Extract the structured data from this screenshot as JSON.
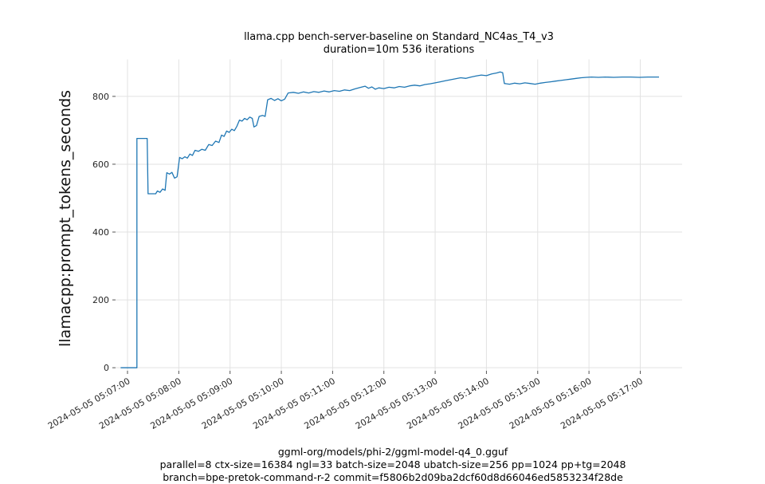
{
  "title": {
    "line1": "llama.cpp bench-server-baseline on Standard_NC4as_T4_v3",
    "line2": "duration=10m 536 iterations"
  },
  "footer": {
    "line1": "ggml-org/models/phi-2/ggml-model-q4_0.gguf",
    "line2": "parallel=8 ctx-size=16384 ngl=33 batch-size=2048 ubatch-size=256 pp=1024 pp+tg=2048",
    "line3": "branch=bpe-pretok-command-r-2 commit=f5806b2d09ba2dcf60d8d66046ed5853234f28de"
  },
  "chart_data": {
    "type": "line",
    "title": "llama.cpp bench-server-baseline on Standard_NC4as_T4_v3 duration=10m 536 iterations",
    "xlabel": "",
    "ylabel": "llamacpp:prompt_tokens_seconds",
    "grid": true,
    "grid_color": "#e2e2e2",
    "tick_color": "#555555",
    "label_color": "#262626",
    "line_color": "#1f77b4",
    "ylim": [
      -9,
      909
    ],
    "xlim_seconds": [
      -14,
      649
    ],
    "y_ticks": [
      0,
      200,
      400,
      600,
      800
    ],
    "x_ticks": [
      {
        "t": 0,
        "label": "2024-05-05 05:07:00"
      },
      {
        "t": 60,
        "label": "2024-05-05 05:08:00"
      },
      {
        "t": 120,
        "label": "2024-05-05 05:09:00"
      },
      {
        "t": 180,
        "label": "2024-05-05 05:10:00"
      },
      {
        "t": 240,
        "label": "2024-05-05 05:11:00"
      },
      {
        "t": 300,
        "label": "2024-05-05 05:12:00"
      },
      {
        "t": 360,
        "label": "2024-05-05 05:13:00"
      },
      {
        "t": 420,
        "label": "2024-05-05 05:14:00"
      },
      {
        "t": 480,
        "label": "2024-05-05 05:15:00"
      },
      {
        "t": 540,
        "label": "2024-05-05 05:16:00"
      },
      {
        "t": 600,
        "label": "2024-05-05 05:17:00"
      }
    ],
    "series": [
      {
        "name": "llamacpp:prompt_tokens_seconds",
        "points": [
          [
            -8,
            0
          ],
          [
            11,
            0
          ],
          [
            11,
            676
          ],
          [
            23,
            676
          ],
          [
            24,
            513
          ],
          [
            33,
            513
          ],
          [
            35,
            521
          ],
          [
            38,
            517
          ],
          [
            41,
            527
          ],
          [
            44,
            523
          ],
          [
            46,
            575
          ],
          [
            49,
            571
          ],
          [
            52,
            576
          ],
          [
            55,
            559
          ],
          [
            58,
            563
          ],
          [
            61,
            620
          ],
          [
            64,
            616
          ],
          [
            67,
            622
          ],
          [
            70,
            618
          ],
          [
            73,
            630
          ],
          [
            76,
            626
          ],
          [
            79,
            641
          ],
          [
            83,
            638
          ],
          [
            87,
            644
          ],
          [
            91,
            641
          ],
          [
            95,
            658
          ],
          [
            99,
            655
          ],
          [
            103,
            668
          ],
          [
            107,
            664
          ],
          [
            110,
            686
          ],
          [
            113,
            682
          ],
          [
            116,
            698
          ],
          [
            119,
            694
          ],
          [
            122,
            703
          ],
          [
            125,
            699
          ],
          [
            128,
            712
          ],
          [
            131,
            730
          ],
          [
            134,
            727
          ],
          [
            137,
            735
          ],
          [
            140,
            731
          ],
          [
            143,
            739
          ],
          [
            146,
            735
          ],
          [
            148,
            710
          ],
          [
            151,
            714
          ],
          [
            154,
            741
          ],
          [
            158,
            744
          ],
          [
            161,
            741
          ],
          [
            164,
            790
          ],
          [
            168,
            794
          ],
          [
            172,
            788
          ],
          [
            176,
            793
          ],
          [
            180,
            787
          ],
          [
            184,
            792
          ],
          [
            188,
            810
          ],
          [
            194,
            812
          ],
          [
            200,
            809
          ],
          [
            206,
            813
          ],
          [
            212,
            810
          ],
          [
            218,
            814
          ],
          [
            224,
            812
          ],
          [
            230,
            816
          ],
          [
            236,
            813
          ],
          [
            242,
            817
          ],
          [
            248,
            815
          ],
          [
            254,
            819
          ],
          [
            260,
            817
          ],
          [
            266,
            822
          ],
          [
            272,
            826
          ],
          [
            278,
            830
          ],
          [
            282,
            824
          ],
          [
            286,
            828
          ],
          [
            290,
            821
          ],
          [
            294,
            825
          ],
          [
            300,
            823
          ],
          [
            306,
            827
          ],
          [
            312,
            825
          ],
          [
            318,
            829
          ],
          [
            324,
            827
          ],
          [
            330,
            831
          ],
          [
            336,
            833
          ],
          [
            342,
            831
          ],
          [
            348,
            835
          ],
          [
            354,
            837
          ],
          [
            360,
            840
          ],
          [
            366,
            843
          ],
          [
            372,
            846
          ],
          [
            378,
            849
          ],
          [
            384,
            852
          ],
          [
            390,
            855
          ],
          [
            396,
            853
          ],
          [
            402,
            857
          ],
          [
            408,
            860
          ],
          [
            414,
            863
          ],
          [
            420,
            861
          ],
          [
            426,
            866
          ],
          [
            432,
            869
          ],
          [
            436,
            872
          ],
          [
            439,
            870
          ],
          [
            441,
            838
          ],
          [
            447,
            836
          ],
          [
            453,
            839
          ],
          [
            459,
            837
          ],
          [
            465,
            840
          ],
          [
            471,
            838
          ],
          [
            477,
            836
          ],
          [
            483,
            839
          ],
          [
            489,
            841
          ],
          [
            495,
            843
          ],
          [
            501,
            845
          ],
          [
            507,
            847
          ],
          [
            513,
            849
          ],
          [
            519,
            851
          ],
          [
            525,
            853
          ],
          [
            531,
            855
          ],
          [
            537,
            856
          ],
          [
            543,
            857
          ],
          [
            551,
            856
          ],
          [
            559,
            857
          ],
          [
            569,
            856
          ],
          [
            579,
            857
          ],
          [
            589,
            857
          ],
          [
            599,
            856
          ],
          [
            609,
            857
          ],
          [
            622,
            857
          ]
        ]
      }
    ]
  }
}
